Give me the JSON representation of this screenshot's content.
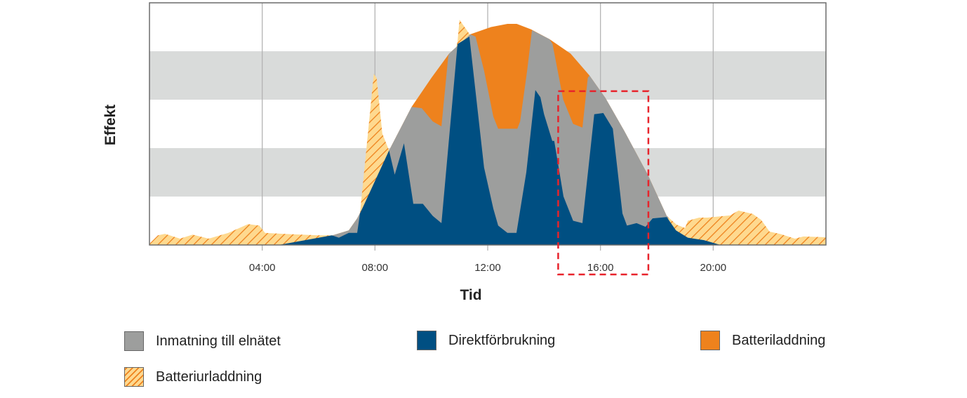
{
  "chart_data": {
    "type": "area",
    "xlabel": "Tid",
    "ylabel": "Effekt",
    "xlim": [
      0,
      24
    ],
    "ylim": [
      0,
      100
    ],
    "x_ticks": [
      {
        "value": 4,
        "label": "04:00"
      },
      {
        "value": 8,
        "label": "08:00"
      },
      {
        "value": 12,
        "label": "12:00"
      },
      {
        "value": 16,
        "label": "16:00"
      },
      {
        "value": 20,
        "label": "20:00"
      }
    ],
    "y_bands": [
      [
        20,
        40
      ],
      [
        60,
        80
      ]
    ],
    "grid": true,
    "highlight": {
      "x_range": [
        14.5,
        17.7
      ],
      "y_top": 63.5,
      "color": "#e8232b",
      "style": "dashed"
    },
    "series": [
      {
        "name": "Batteriurladdning",
        "key": "discharge",
        "color": "#ee821d",
        "fill": "#fed98f",
        "pattern": "hatched",
        "points": [
          [
            0,
            0.5
          ],
          [
            0.3,
            4
          ],
          [
            0.55,
            4.6
          ],
          [
            1.08,
            2.6
          ],
          [
            1.53,
            4.3
          ],
          [
            2.1,
            2.6
          ],
          [
            2.8,
            5
          ],
          [
            3.5,
            8.6
          ],
          [
            3.9,
            8
          ],
          [
            4.1,
            5
          ],
          [
            4.94,
            4.5
          ],
          [
            6.0,
            4
          ],
          [
            6.5,
            4
          ],
          [
            7.07,
            6
          ],
          [
            7.37,
            11
          ],
          [
            7.47,
            13
          ],
          [
            7.96,
            70.7
          ],
          [
            8.06,
            69
          ],
          [
            8.26,
            46
          ],
          [
            8.5,
            39
          ],
          [
            10.85,
            80
          ],
          [
            10.93,
            84
          ],
          [
            11.0,
            93
          ],
          [
            11.36,
            87
          ],
          [
            11.4,
            87
          ],
          [
            18.35,
            12
          ],
          [
            18.4,
            11.5
          ],
          [
            18.7,
            8.4
          ],
          [
            19.0,
            7
          ],
          [
            19.1,
            10
          ],
          [
            19.5,
            11.3
          ],
          [
            19.8,
            11.3
          ],
          [
            20.6,
            12.2
          ],
          [
            20.9,
            14.2
          ],
          [
            21.4,
            12.8
          ],
          [
            21.7,
            10.4
          ],
          [
            22.0,
            5.5
          ],
          [
            22.4,
            4.5
          ],
          [
            22.9,
            2.6
          ],
          [
            23.2,
            3.5
          ],
          [
            24,
            3.2
          ]
        ]
      },
      {
        "name": "Batteriladdning",
        "key": "charge",
        "color": "#ee821d",
        "points": [
          [
            6.3,
            0
          ],
          [
            6.5,
            4
          ],
          [
            7.07,
            6
          ],
          [
            7.37,
            11
          ],
          [
            8.0,
            25
          ],
          [
            8.5,
            39
          ],
          [
            9.3,
            57
          ],
          [
            10.0,
            69
          ],
          [
            10.63,
            79
          ],
          [
            11.38,
            87
          ],
          [
            12.12,
            90
          ],
          [
            12.7,
            91.3
          ],
          [
            13.03,
            91.3
          ],
          [
            13.54,
            89
          ],
          [
            14.19,
            85
          ],
          [
            14.94,
            79
          ],
          [
            15.61,
            70
          ],
          [
            16.18,
            60.6
          ],
          [
            16.85,
            47
          ],
          [
            17.68,
            29
          ],
          [
            18.35,
            12
          ],
          [
            18.4,
            11.5
          ],
          [
            18.5,
            0
          ]
        ]
      },
      {
        "name": "Inmatning till elnätet",
        "key": "feedin",
        "color": "#9d9e9d",
        "points": [
          [
            6.3,
            0
          ],
          [
            6.5,
            4
          ],
          [
            7.07,
            6
          ],
          [
            7.37,
            11
          ],
          [
            8.0,
            25
          ],
          [
            8.5,
            39
          ],
          [
            9.3,
            57
          ],
          [
            9.66,
            56.5
          ],
          [
            10.05,
            51
          ],
          [
            10.36,
            49
          ],
          [
            10.6,
            78
          ],
          [
            10.63,
            79
          ],
          [
            11.38,
            87
          ],
          [
            11.57,
            86
          ],
          [
            11.87,
            72
          ],
          [
            12.2,
            53
          ],
          [
            12.37,
            48
          ],
          [
            13.05,
            48
          ],
          [
            13.15,
            51
          ],
          [
            13.4,
            72
          ],
          [
            13.57,
            88.7
          ],
          [
            14.19,
            85
          ],
          [
            14.3,
            83
          ],
          [
            14.68,
            60
          ],
          [
            15.03,
            50
          ],
          [
            15.36,
            48.5
          ],
          [
            15.55,
            69
          ],
          [
            15.61,
            70
          ],
          [
            16.18,
            60.6
          ],
          [
            16.85,
            47
          ],
          [
            17.68,
            29
          ],
          [
            18.35,
            12
          ],
          [
            18.4,
            11.5
          ],
          [
            18.5,
            0
          ]
        ]
      },
      {
        "name": "Direktförbrukning",
        "key": "direct",
        "color": "#004f82",
        "points": [
          [
            0,
            0
          ],
          [
            4.58,
            0
          ],
          [
            6.47,
            4
          ],
          [
            6.72,
            3
          ],
          [
            7.07,
            5
          ],
          [
            7.37,
            5
          ],
          [
            7.47,
            13
          ],
          [
            8.5,
            39
          ],
          [
            8.7,
            29
          ],
          [
            9.03,
            42
          ],
          [
            9.36,
            17
          ],
          [
            9.7,
            17
          ],
          [
            10.05,
            12
          ],
          [
            10.36,
            9
          ],
          [
            10.93,
            83
          ],
          [
            11.35,
            86
          ],
          [
            11.87,
            32
          ],
          [
            12.2,
            15
          ],
          [
            12.37,
            8
          ],
          [
            12.7,
            5
          ],
          [
            13.02,
            5
          ],
          [
            13.37,
            30
          ],
          [
            13.69,
            64
          ],
          [
            13.87,
            61
          ],
          [
            14.0,
            54
          ],
          [
            14.29,
            43
          ],
          [
            14.36,
            43
          ],
          [
            14.69,
            20
          ],
          [
            15.03,
            10
          ],
          [
            15.36,
            9
          ],
          [
            15.78,
            54
          ],
          [
            16.1,
            54.5
          ],
          [
            16.44,
            48
          ],
          [
            16.78,
            13
          ],
          [
            16.94,
            8
          ],
          [
            17.28,
            9
          ],
          [
            17.6,
            7.5
          ],
          [
            17.85,
            11
          ],
          [
            18.35,
            11.5
          ],
          [
            18.68,
            6
          ],
          [
            19.1,
            3
          ],
          [
            19.67,
            2
          ],
          [
            20.26,
            0
          ],
          [
            24,
            0
          ]
        ]
      }
    ],
    "legend": [
      {
        "label": "Inmatning till elnätet",
        "color": "#9d9e9d"
      },
      {
        "label": "Direktförbrukning",
        "color": "#004f82"
      },
      {
        "label": "Batteriladdning",
        "color": "#ee821d"
      },
      {
        "label": "Batteriurladdning",
        "color": "#fed98f",
        "pattern": "hatched"
      }
    ],
    "legend_position": "bottom",
    "colors": {
      "band": "#d9dbda",
      "gridline": "#b4b4b4",
      "frame": "#6b6b6b"
    }
  }
}
